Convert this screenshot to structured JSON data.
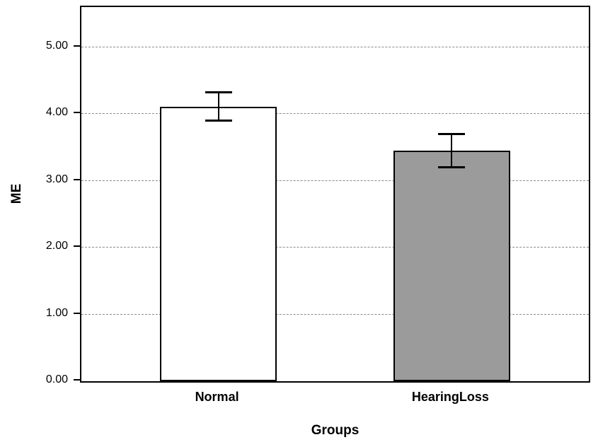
{
  "chart_data": {
    "type": "bar",
    "title": "",
    "xlabel": "Groups",
    "ylabel": "ME",
    "categories": [
      "Normal",
      "HearingLoss"
    ],
    "values": [
      4.11,
      3.45
    ],
    "error_low": [
      3.9,
      3.2
    ],
    "error_high": [
      4.33,
      3.7
    ],
    "bar_colors": [
      "#ffffff",
      "#9b9b9b"
    ],
    "bar_border_color": "#000000",
    "ylim": [
      0,
      5.6
    ],
    "yticks": [
      0,
      1,
      2,
      3,
      4,
      5
    ],
    "ytick_labels": [
      "0.00",
      "1.00",
      "2.00",
      "3.00",
      "4.00",
      "5.00"
    ],
    "grid": "horizontal-dashed",
    "legend": "none"
  }
}
